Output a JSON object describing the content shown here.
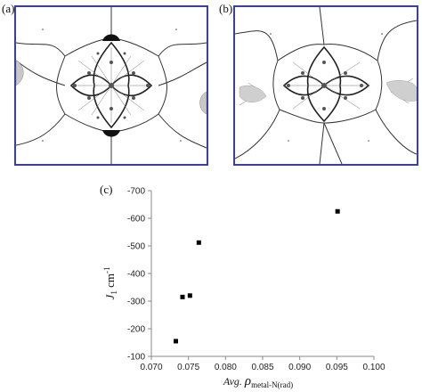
{
  "panels": [
    {
      "label": "(a)"
    },
    {
      "label": "(b)"
    }
  ],
  "chart_data": {
    "panel_label": "(c)",
    "type": "scatter",
    "x": [
      0.0733,
      0.0742,
      0.0752,
      0.0764,
      0.0951
    ],
    "y": [
      -155,
      -315,
      -320,
      -512,
      -625
    ],
    "xlim": [
      0.07,
      0.1
    ],
    "ylim": [
      -100,
      -700
    ],
    "xticks": [
      "0.070",
      "0.075",
      "0.080",
      "0.085",
      "0.090",
      "0.095",
      "0.100"
    ],
    "yticks": [
      "-100",
      "-200",
      "-300",
      "-400",
      "-500",
      "-600",
      "-700"
    ],
    "ylabel": {
      "main": "J",
      "sub": "1",
      "rest": " cm",
      "sup": "-1"
    },
    "xlabel": {
      "prefix": "Avg. ",
      "rho": "ρ",
      "sub": "metal-N(rad)"
    },
    "grid": false,
    "colors": {
      "axis": "#8a8a8a",
      "marker": "#000000",
      "frame": "#3a3fa0"
    }
  }
}
